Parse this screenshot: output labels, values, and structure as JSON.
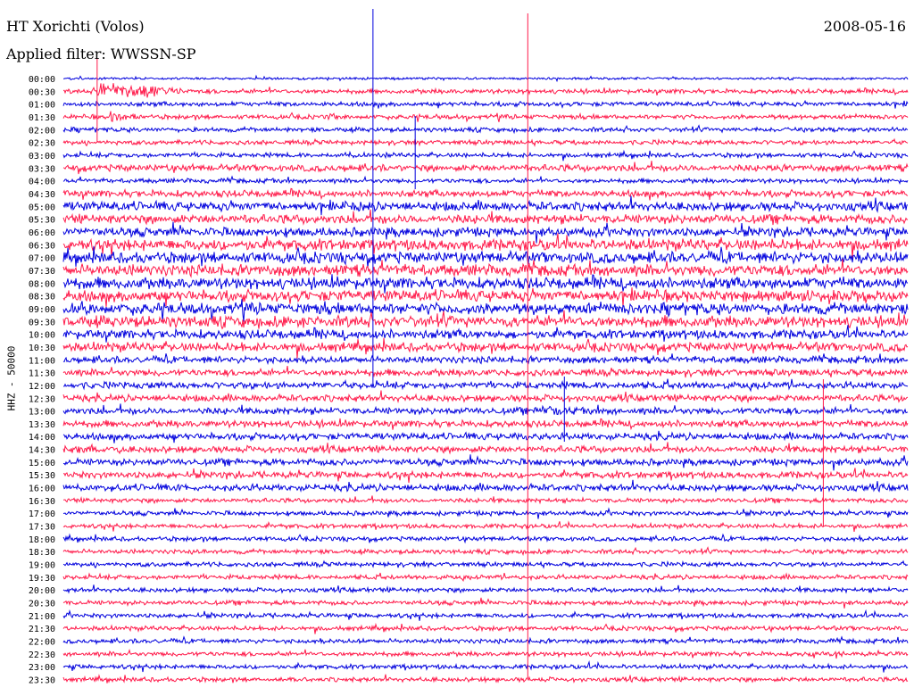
{
  "header": {
    "station": "HT Xorichti (Volos)",
    "date": "2008-05-16",
    "filter": "Applied filter: WWSSN-SP"
  },
  "colors": {
    "trace_a": "#0000dd",
    "trace_b": "#ff1a4a",
    "background": "#ffffff"
  },
  "chart_data": {
    "type": "line",
    "subtype": "helicorder",
    "ylabel": "HHZ - 50000",
    "row_labels": [
      "00:00",
      "00:30",
      "01:00",
      "01:30",
      "02:00",
      "02:30",
      "03:00",
      "03:30",
      "04:00",
      "04:30",
      "05:00",
      "05:30",
      "06:00",
      "06:30",
      "07:00",
      "07:30",
      "08:00",
      "08:30",
      "09:00",
      "09:30",
      "10:00",
      "10:30",
      "11:00",
      "11:30",
      "12:00",
      "12:30",
      "13:00",
      "13:30",
      "14:00",
      "14:30",
      "15:00",
      "15:30",
      "16:00",
      "16:30",
      "17:00",
      "17:30",
      "18:00",
      "18:30",
      "19:00",
      "19:30",
      "20:00",
      "20:30",
      "21:00",
      "21:30",
      "22:00",
      "22:30",
      "23:00",
      "23:30"
    ],
    "row_colors": "alternating blue/red starting with blue",
    "noise_level": [
      1,
      2,
      2,
      2,
      2,
      2,
      2,
      3,
      2,
      3,
      4,
      4,
      4,
      5,
      5,
      5,
      5,
      5,
      5,
      5,
      4,
      4,
      3,
      3,
      3,
      3,
      3,
      3,
      3,
      3,
      3,
      3,
      3,
      2,
      2,
      2,
      2,
      2,
      2,
      2,
      2,
      2,
      2,
      2,
      2,
      2,
      2,
      2
    ],
    "events": [
      {
        "row": 1,
        "minute": 1.2,
        "amplitude": 9,
        "duration": 3.0
      },
      {
        "row": 3,
        "minute": 1.6,
        "amplitude": 5,
        "duration": 1.2
      },
      {
        "row": 3,
        "minute": 9.4,
        "amplitude": 4,
        "duration": 0.6
      },
      {
        "row": 6,
        "minute": 10.0,
        "amplitude": 4,
        "duration": 0.6
      },
      {
        "row": 6,
        "minute": 11.2,
        "amplitude": 5,
        "duration": 0.5
      },
      {
        "row": 10,
        "minute": 10.0,
        "amplitude": 6,
        "duration": 1.0
      },
      {
        "row": 7,
        "minute": 11.6,
        "amplitude": 3,
        "duration": 0.8
      },
      {
        "row": 7,
        "minute": 25.0,
        "amplitude": 3,
        "duration": 0.5
      },
      {
        "row": 19,
        "minute": 15.5,
        "amplitude": 6,
        "duration": 1.2
      },
      {
        "row": 20,
        "minute": 15.0,
        "amplitude": 3,
        "duration": 1.0
      },
      {
        "row": 26,
        "minute": 17.0,
        "amplitude": 6,
        "duration": 1.0
      },
      {
        "row": 28,
        "minute": 16.0,
        "amplitude": 3,
        "duration": 0.8
      },
      {
        "row": 29,
        "minute": 0.5,
        "amplitude": 5,
        "duration": 1.5
      },
      {
        "row": 32,
        "minute": 0.0,
        "amplitude": 3,
        "duration": 2.0
      },
      {
        "row": 32,
        "minute": 4.0,
        "amplitude": 3,
        "duration": 1.0
      },
      {
        "row": 45,
        "minute": 26.5,
        "amplitude": 2,
        "duration": 1.0
      },
      {
        "row": 47,
        "minute": 7.5,
        "amplitude": 2,
        "duration": 1.0
      },
      {
        "row": 37,
        "minute": 4.5,
        "amplitude": 2,
        "duration": 0.5
      },
      {
        "row": 23,
        "minute": 15.0,
        "amplitude": 3,
        "duration": 0.6
      }
    ]
  }
}
